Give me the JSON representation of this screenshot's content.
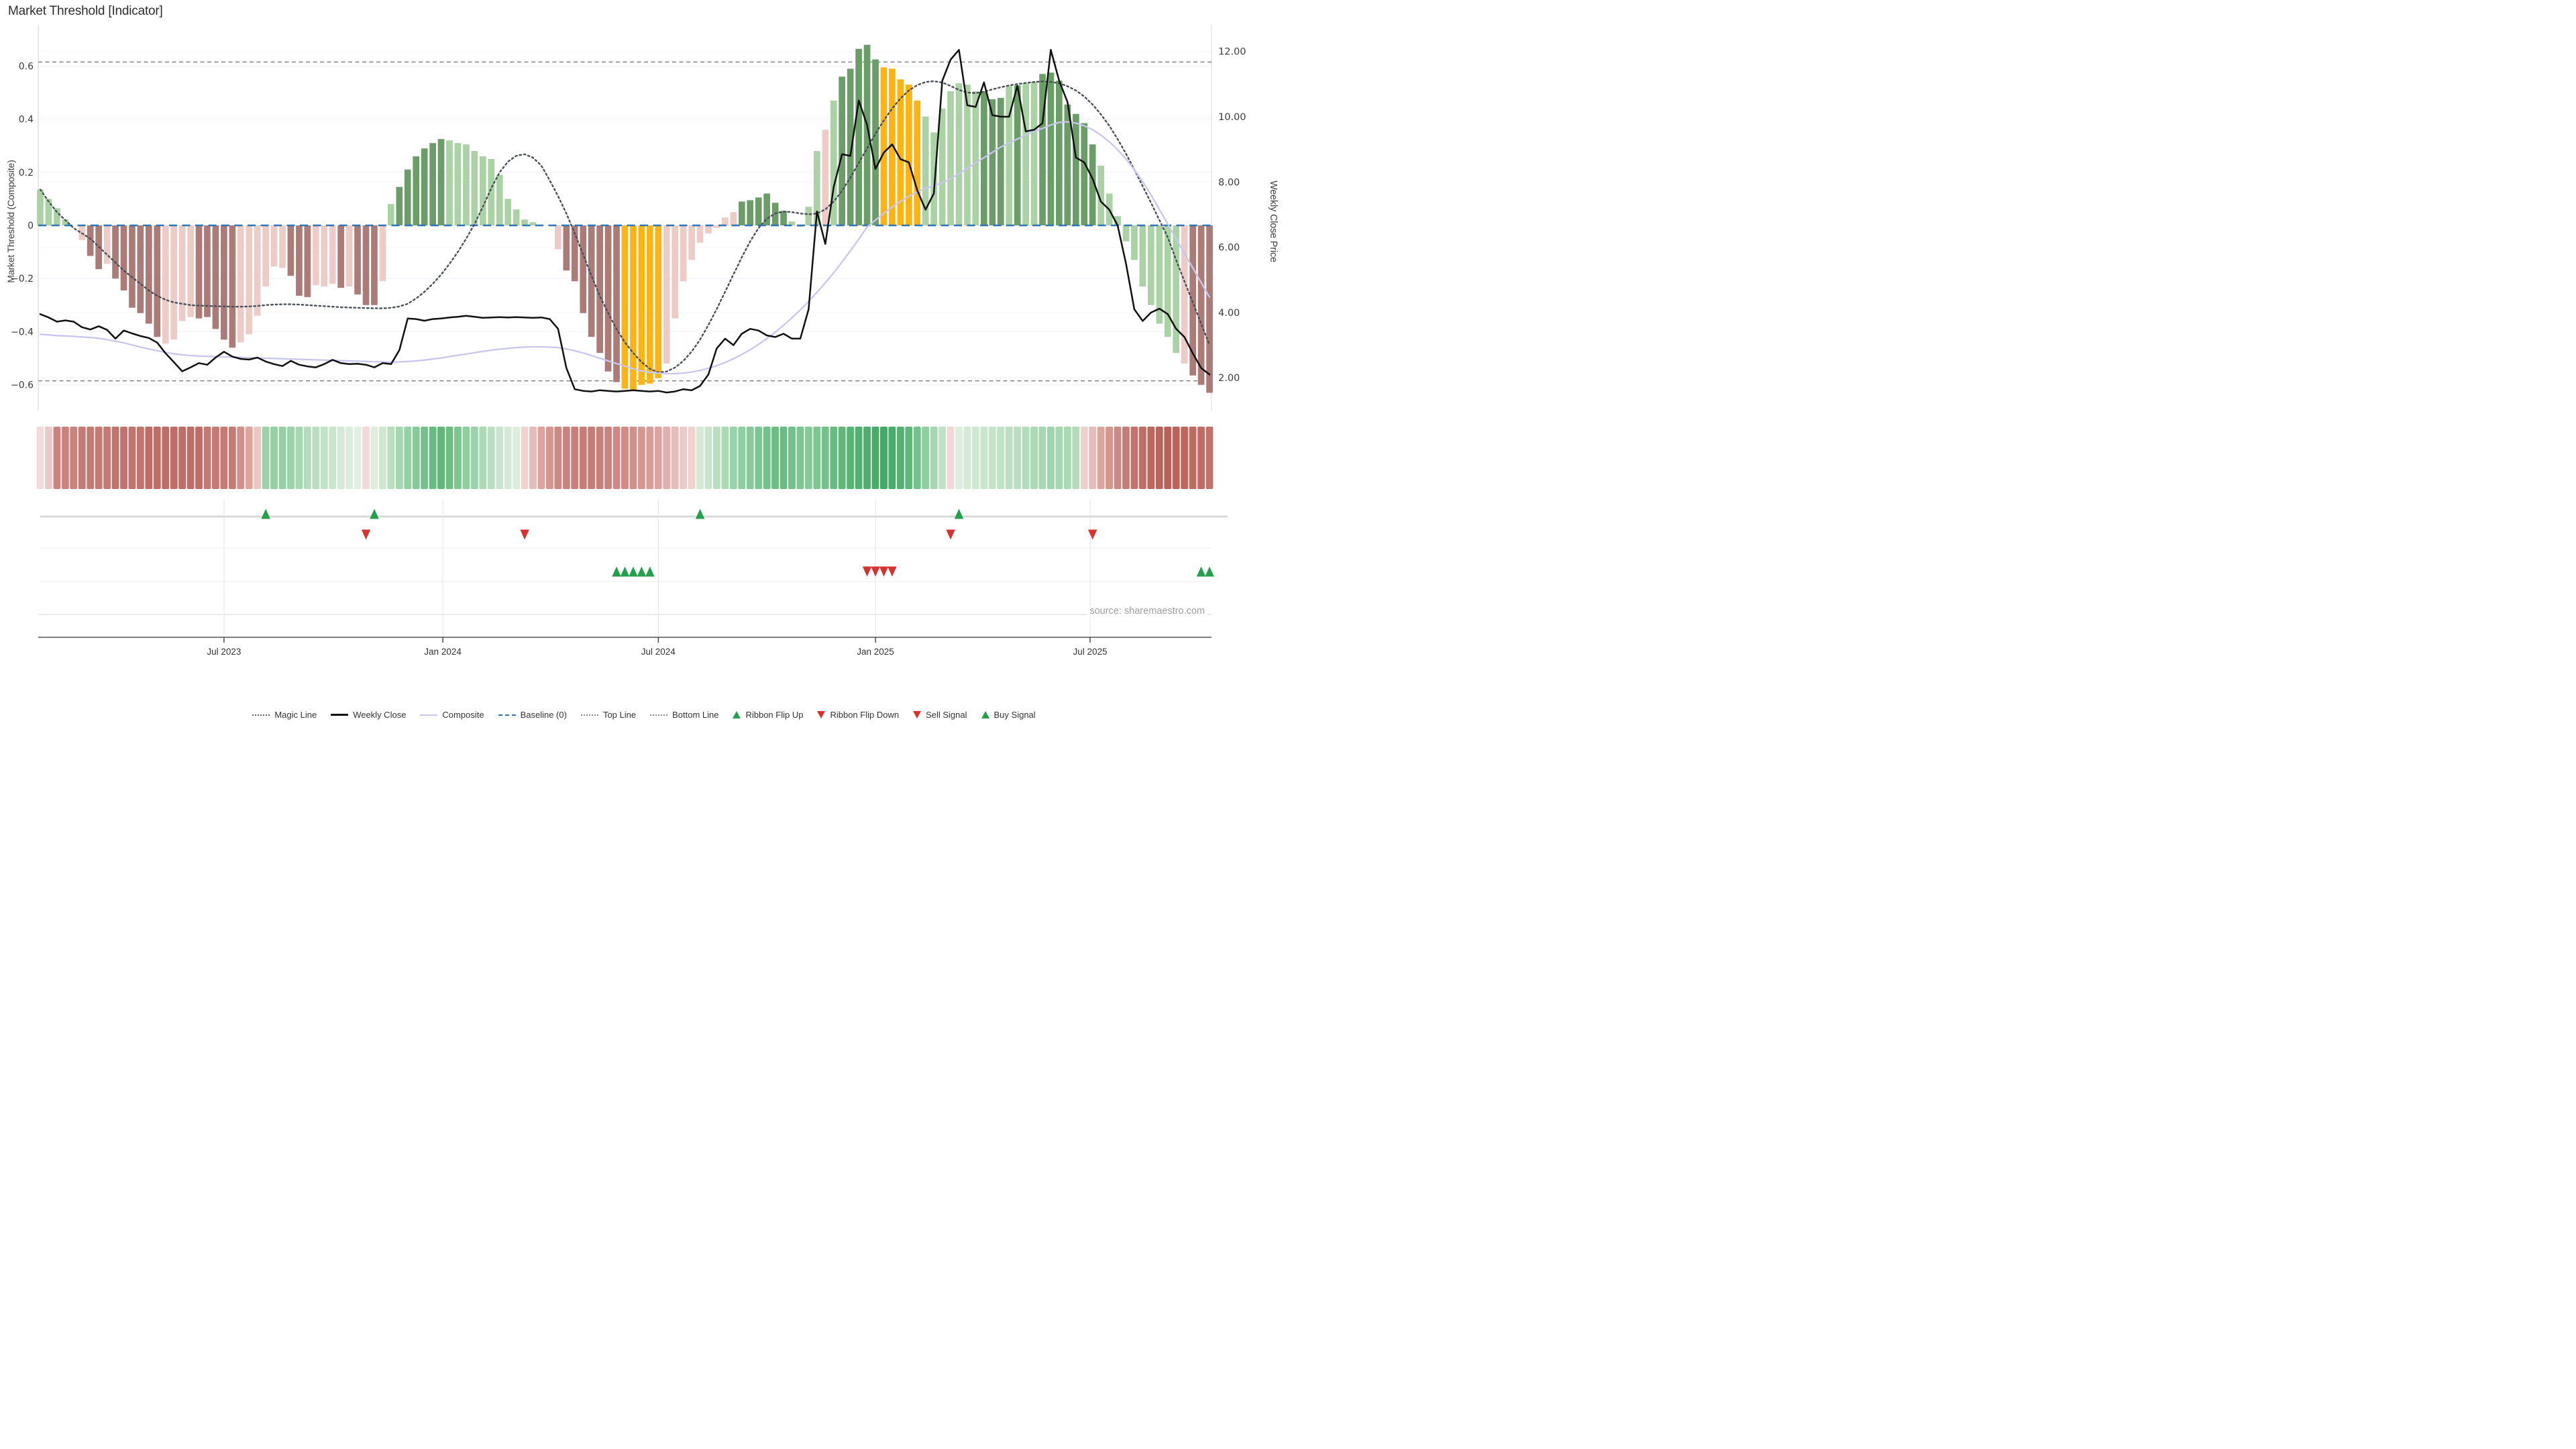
{
  "title": "Market Threshold [Indicator]",
  "source": "source: sharemaestro.com",
  "axes": {
    "left_label": "Market Threshold (Composite)",
    "right_label": "Weekly Close Price",
    "left_tick_labels": [
      "0.6",
      "0.4",
      "0.2",
      "0",
      "−0.2",
      "−0.4",
      "−0.6"
    ],
    "left_tick_values": [
      0.6,
      0.4,
      0.2,
      0,
      -0.2,
      -0.4,
      -0.6
    ],
    "right_tick_labels": [
      "12.00",
      "10.00",
      "8.00",
      "6.00",
      "4.00",
      "2.00"
    ],
    "right_tick_values": [
      12,
      10,
      8,
      6,
      4,
      2
    ],
    "x_tick_labels": [
      "Jul 2023",
      "Jan 2024",
      "Jul 2024",
      "Jan 2025",
      "Jul 2025"
    ],
    "x_tick_weeks": [
      22.0,
      48.2,
      74.0,
      100.0,
      125.7
    ]
  },
  "chart_data": {
    "type": "bar",
    "x_unit": "weeks",
    "n_weeks": 141,
    "ylim_left": [
      -0.7,
      0.76
    ],
    "top_line": 0.615,
    "bottom_line": -0.585,
    "baseline": 0,
    "bar_palette": {
      "g": "#6b9d68",
      "l": "#aad2a5",
      "r": "#aa7b77",
      "p": "#edcbc7",
      "y": "#fbb414"
    },
    "bar_colors": "llllnprrprrrrrrpppprrrrrpppppprrrppprprrrplggggggllllllllllllnprrrrrrryyyyypppppppppggggggllllplgggggyyyyylllllllggglgllgggggggllllllllllprrrrrrrrryy",
    "series": [
      {
        "name": "Threshold Bars",
        "type": "bar",
        "axis": "left",
        "values": [
          0.135,
          0.1,
          0.065,
          0.022,
          0,
          -0.055,
          -0.115,
          -0.165,
          -0.145,
          -0.2,
          -0.245,
          -0.31,
          -0.33,
          -0.37,
          -0.42,
          -0.445,
          -0.43,
          -0.36,
          -0.345,
          -0.35,
          -0.345,
          -0.39,
          -0.43,
          -0.46,
          -0.44,
          -0.41,
          -0.34,
          -0.23,
          -0.155,
          -0.16,
          -0.19,
          -0.265,
          -0.27,
          -0.225,
          -0.23,
          -0.22,
          -0.235,
          -0.23,
          -0.26,
          -0.3,
          -0.3,
          -0.21,
          0.08,
          0.145,
          0.21,
          0.26,
          0.29,
          0.31,
          0.325,
          0.32,
          0.31,
          0.305,
          0.28,
          0.26,
          0.25,
          0.19,
          0.1,
          0.06,
          0.022,
          0.012,
          0,
          -0.035,
          -0.09,
          -0.17,
          -0.21,
          -0.33,
          -0.42,
          -0.48,
          -0.55,
          -0.59,
          -0.615,
          -0.62,
          -0.6,
          -0.595,
          -0.575,
          -0.52,
          -0.35,
          -0.21,
          -0.13,
          -0.065,
          -0.03,
          -0.01,
          0.03,
          0.05,
          0.09,
          0.095,
          0.105,
          0.12,
          0.085,
          0.055,
          0.015,
          -0.005,
          0.07,
          0.28,
          0.36,
          0.47,
          0.56,
          0.59,
          0.665,
          0.68,
          0.625,
          0.595,
          0.59,
          0.55,
          0.53,
          0.47,
          0.41,
          0.35,
          0.44,
          0.505,
          0.535,
          0.53,
          0.505,
          0.505,
          0.475,
          0.48,
          0.525,
          0.527,
          0.535,
          0.54,
          0.57,
          0.575,
          0.545,
          0.455,
          0.42,
          0.385,
          0.305,
          0.225,
          0.12,
          0.035,
          -0.06,
          -0.13,
          -0.23,
          -0.3,
          -0.37,
          -0.42,
          -0.48,
          -0.52,
          -0.565,
          -0.6,
          -0.63
        ]
      },
      {
        "name": "Magic Line",
        "type": "line",
        "axis": "left",
        "values": [
          0.135,
          0.09,
          0.05,
          0.02,
          -0.01,
          -0.03,
          -0.05,
          -0.08,
          -0.11,
          -0.14,
          -0.17,
          -0.195,
          -0.22,
          -0.245,
          -0.265,
          -0.28,
          -0.29,
          -0.295,
          -0.3,
          -0.302,
          -0.303,
          -0.304,
          -0.305,
          -0.306,
          -0.306,
          -0.305,
          -0.303,
          -0.3,
          -0.298,
          -0.297,
          -0.297,
          -0.298,
          -0.3,
          -0.302,
          -0.304,
          -0.306,
          -0.308,
          -0.309,
          -0.31,
          -0.311,
          -0.312,
          -0.312,
          -0.31,
          -0.305,
          -0.295,
          -0.275,
          -0.25,
          -0.22,
          -0.185,
          -0.145,
          -0.1,
          -0.05,
          0.005,
          0.07,
          0.14,
          0.2,
          0.24,
          0.262,
          0.268,
          0.255,
          0.225,
          0.17,
          0.11,
          0.045,
          -0.03,
          -0.11,
          -0.19,
          -0.265,
          -0.33,
          -0.39,
          -0.44,
          -0.48,
          -0.515,
          -0.54,
          -0.553,
          -0.55,
          -0.535,
          -0.51,
          -0.475,
          -0.43,
          -0.375,
          -0.315,
          -0.25,
          -0.185,
          -0.12,
          -0.06,
          -0.01,
          0.025,
          0.045,
          0.052,
          0.05,
          0.045,
          0.042,
          0.045,
          0.06,
          0.09,
          0.13,
          0.18,
          0.235,
          0.29,
          0.345,
          0.395,
          0.44,
          0.478,
          0.508,
          0.528,
          0.54,
          0.543,
          0.538,
          0.525,
          0.51,
          0.5,
          0.498,
          0.503,
          0.512,
          0.52,
          0.527,
          0.532,
          0.536,
          0.54,
          0.542,
          0.54,
          0.535,
          0.524,
          0.508,
          0.485,
          0.455,
          0.418,
          0.375,
          0.325,
          0.27,
          0.21,
          0.148,
          0.085,
          0.02,
          -0.045,
          -0.13,
          -0.21,
          -0.29,
          -0.37,
          -0.45
        ]
      },
      {
        "name": "Composite",
        "type": "line",
        "axis": "left",
        "values": [
          -0.41,
          -0.412,
          -0.415,
          -0.416,
          -0.418,
          -0.42,
          -0.422,
          -0.425,
          -0.43,
          -0.436,
          -0.442,
          -0.45,
          -0.458,
          -0.465,
          -0.472,
          -0.478,
          -0.483,
          -0.487,
          -0.49,
          -0.492,
          -0.493,
          -0.494,
          -0.495,
          -0.496,
          -0.497,
          -0.498,
          -0.499,
          -0.5,
          -0.501,
          -0.502,
          -0.503,
          -0.504,
          -0.505,
          -0.506,
          -0.507,
          -0.508,
          -0.509,
          -0.51,
          -0.511,
          -0.512,
          -0.513,
          -0.514,
          -0.515,
          -0.514,
          -0.512,
          -0.51,
          -0.507,
          -0.503,
          -0.499,
          -0.494,
          -0.489,
          -0.484,
          -0.479,
          -0.474,
          -0.47,
          -0.466,
          -0.463,
          -0.46,
          -0.458,
          -0.457,
          -0.457,
          -0.458,
          -0.46,
          -0.465,
          -0.472,
          -0.48,
          -0.49,
          -0.5,
          -0.51,
          -0.52,
          -0.53,
          -0.54,
          -0.548,
          -0.553,
          -0.556,
          -0.558,
          -0.558,
          -0.556,
          -0.552,
          -0.546,
          -0.538,
          -0.528,
          -0.516,
          -0.502,
          -0.486,
          -0.468,
          -0.448,
          -0.426,
          -0.402,
          -0.376,
          -0.348,
          -0.318,
          -0.286,
          -0.252,
          -0.216,
          -0.178,
          -0.138,
          -0.096,
          -0.052,
          -0.006,
          0.02,
          0.045,
          0.07,
          0.09,
          0.11,
          0.125,
          0.14,
          0.15,
          0.16,
          0.175,
          0.195,
          0.215,
          0.235,
          0.255,
          0.275,
          0.295,
          0.31,
          0.325,
          0.34,
          0.355,
          0.365,
          0.378,
          0.388,
          0.39,
          0.385,
          0.375,
          0.36,
          0.34,
          0.315,
          0.285,
          0.25,
          0.21,
          0.165,
          0.115,
          0.06,
          0.005,
          -0.05,
          -0.105,
          -0.16,
          -0.215,
          -0.27
        ]
      },
      {
        "name": "Weekly Close",
        "type": "line",
        "axis": "right",
        "values": [
          3.95,
          3.85,
          3.72,
          3.76,
          3.72,
          3.55,
          3.48,
          3.58,
          3.47,
          3.2,
          3.45,
          3.36,
          3.28,
          3.22,
          3.08,
          2.75,
          2.48,
          2.2,
          2.32,
          2.45,
          2.4,
          2.62,
          2.8,
          2.65,
          2.58,
          2.56,
          2.62,
          2.5,
          2.42,
          2.36,
          2.52,
          2.4,
          2.35,
          2.32,
          2.42,
          2.55,
          2.45,
          2.42,
          2.43,
          2.4,
          2.32,
          2.45,
          2.42,
          2.85,
          3.82,
          3.8,
          3.75,
          3.8,
          3.82,
          3.85,
          3.87,
          3.9,
          3.87,
          3.84,
          3.85,
          3.86,
          3.85,
          3.86,
          3.85,
          3.84,
          3.85,
          3.8,
          3.5,
          2.3,
          1.65,
          1.6,
          1.58,
          1.62,
          1.6,
          1.58,
          1.6,
          1.62,
          1.6,
          1.58,
          1.6,
          1.55,
          1.58,
          1.65,
          1.62,
          1.75,
          2.1,
          2.9,
          3.2,
          3.0,
          3.35,
          3.5,
          3.45,
          3.3,
          3.25,
          3.35,
          3.2,
          3.2,
          4.1,
          7.1,
          6.1,
          7.85,
          8.85,
          8.8,
          10.5,
          9.75,
          8.4,
          8.9,
          9.15,
          8.7,
          8.6,
          7.75,
          7.15,
          7.65,
          11.1,
          11.75,
          12.05,
          10.35,
          10.3,
          11.05,
          10.05,
          10.0,
          10.0,
          10.95,
          9.55,
          9.6,
          9.8,
          12.05,
          11.1,
          10.45,
          8.75,
          8.6,
          8.1,
          7.4,
          7.15,
          6.67,
          5.5,
          4.1,
          3.74,
          4.0,
          4.12,
          3.95,
          3.5,
          3.25,
          2.75,
          2.3,
          2.1
        ]
      }
    ],
    "ribbon_colors": [
      "#f2dcdb",
      "#eccac8",
      "#cb837f",
      "#cb837f",
      "#cb837f",
      "#c67a75",
      "#c67a75",
      "#c67a75",
      "#c67a75",
      "#c2736d",
      "#c2736d",
      "#c2736d",
      "#c2736d",
      "#bf6d66",
      "#bf6d66",
      "#bf6d66",
      "#bf6d66",
      "#bf6d66",
      "#bf6d66",
      "#bf6d66",
      "#c67a74",
      "#c67a74",
      "#c67a74",
      "#c67a74",
      "#d2908a",
      "#dda49e",
      "#ecc6c3",
      "#9ad3aa",
      "#93d0a4",
      "#93d0a4",
      "#9ad3aa",
      "#a5d8b0",
      "#b2dcbb",
      "#b9dfc0",
      "#c0e2c6",
      "#c9e6cd",
      "#d4ead6",
      "#dcedde",
      "#e2f0e3",
      "#f4d8d8",
      "#dceede",
      "#cfe7d1",
      "#b9dfc0",
      "#a5d8b0",
      "#93d0a4",
      "#85ca98",
      "#74c28b",
      "#68bc81",
      "#5fb87a",
      "#6cbe83",
      "#7cc791",
      "#8ecf9f",
      "#9ad3aa",
      "#aad9b4",
      "#b9dfc0",
      "#c9e6cd",
      "#d4ead6",
      "#dcedde",
      "#f0d2d0",
      "#e7bcb8",
      "#dda49e",
      "#d5968f",
      "#cd8984",
      "#cb837f",
      "#c97f7a",
      "#c77d77",
      "#c77d77",
      "#c97f7a",
      "#cb837f",
      "#cd8984",
      "#d08d87",
      "#d2908a",
      "#d59690",
      "#d99b95",
      "#dda49e",
      "#e2b0ac",
      "#e7bcb8",
      "#eccac8",
      "#f0d2d0",
      "#d4ead6",
      "#c9e6cd",
      "#b9dfc0",
      "#aad9b4",
      "#9ad3aa",
      "#8ecf9f",
      "#85ca98",
      "#7cc791",
      "#74c28b",
      "#6cbe83",
      "#68bc81",
      "#74c28b",
      "#7cc791",
      "#85ca98",
      "#7cc791",
      "#74c28b",
      "#68bc81",
      "#5fb87a",
      "#58b475",
      "#52b171",
      "#4dae6e",
      "#49ac6b",
      "#45a869",
      "#49ac6b",
      "#52b171",
      "#5fb87a",
      "#74c28b",
      "#8ecf9f",
      "#a5d8b0",
      "#c0e2c6",
      "#f0d8d8",
      "#dceede",
      "#d4ead6",
      "#cfe8d2",
      "#c9e6cd",
      "#c4e4ca",
      "#c0e2c6",
      "#bcdfc3",
      "#b9dfc0",
      "#b2dcbb",
      "#aad9b4",
      "#a5d8b0",
      "#a0d5ac",
      "#a5d8b0",
      "#aad9b4",
      "#b2dcbb",
      "#eecfcd",
      "#e7bcb8",
      "#dda49e",
      "#d5968f",
      "#cd8984",
      "#c77d77",
      "#c2736d",
      "#bf6d66",
      "#bc675f",
      "#b9635b",
      "#b96158",
      "#bb645c",
      "#bd675f",
      "#bf6b62",
      "#c06c64",
      "#c3726a"
    ],
    "signals": {
      "ribbon_flip_up_weeks": [
        27,
        40,
        79,
        110
      ],
      "ribbon_flip_down_weeks": [
        39,
        58,
        109,
        126
      ],
      "buy_signal_weeks": [
        69,
        70,
        71,
        72,
        73,
        139,
        140
      ],
      "sell_signal_weeks": [
        99,
        100,
        101,
        102
      ]
    }
  },
  "colors": {
    "bar_green": "#6b9d68",
    "bar_light_green": "#aad2a5",
    "bar_red": "#aa7b77",
    "bar_light_red": "#edcbc7",
    "bar_gold": "#fbb414",
    "baseline_blue": "#2e75b6",
    "magic_line": "#4a4f57",
    "composite_line": "#c9c6ee",
    "weekly_close": "#111111",
    "top_bottom_line": "#8a8a8a",
    "signal_green": "#22a04a",
    "signal_red": "#d63230",
    "gridline": "#eef0f5"
  },
  "legend": {
    "items": [
      {
        "label": "Magic Line",
        "marker": "dotted-gray"
      },
      {
        "label": "Weekly Close",
        "marker": "solid-black"
      },
      {
        "label": "Composite",
        "marker": "solid-lavender"
      },
      {
        "label": "Baseline (0)",
        "marker": "dashed-blue"
      },
      {
        "label": "Top Line",
        "marker": "dotted-gray-thin"
      },
      {
        "label": "Bottom Line",
        "marker": "dotted-gray-thin"
      },
      {
        "label": "Ribbon Flip Up",
        "marker": "triangle-up-green"
      },
      {
        "label": "Ribbon Flip Down",
        "marker": "triangle-down-red"
      },
      {
        "label": "Sell Signal",
        "marker": "triangle-down-red"
      },
      {
        "label": "Buy Signal",
        "marker": "triangle-up-green"
      }
    ]
  }
}
